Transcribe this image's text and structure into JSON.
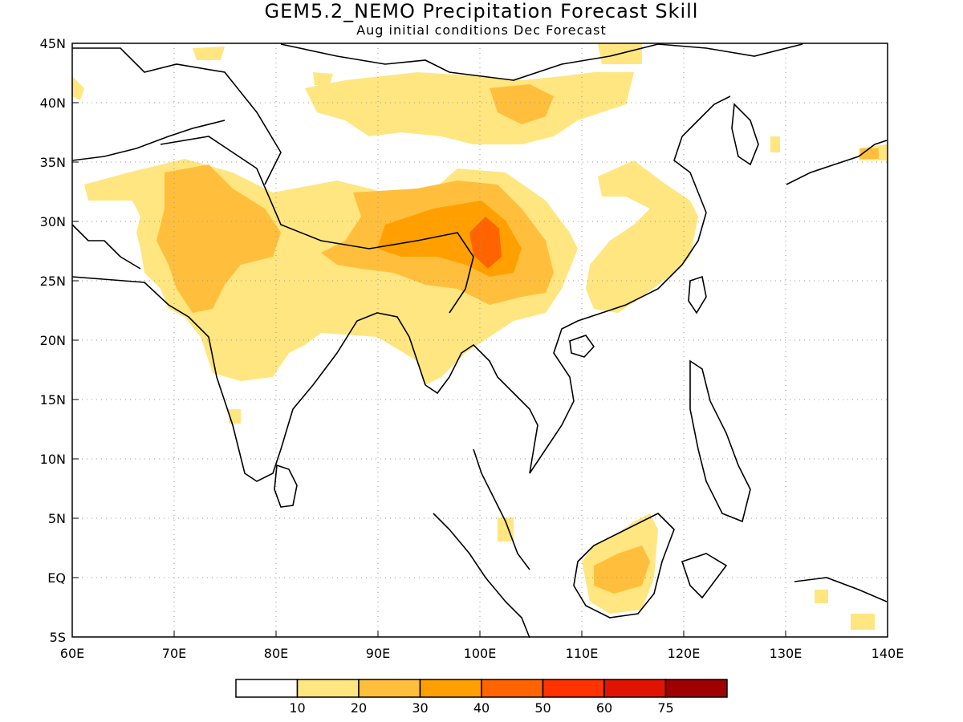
{
  "title": "GEM5.2_NEMO Precipitation Forecast Skill",
  "subtitle": "Aug initial conditions  Dec Forecast",
  "axes": {
    "lon_labels": [
      "60E",
      "70E",
      "80E",
      "90E",
      "100E",
      "110E",
      "120E",
      "130E",
      "140E"
    ],
    "lat_labels": [
      "45N",
      "40N",
      "35N",
      "30N",
      "25N",
      "20N",
      "15N",
      "10N",
      "5N",
      "EQ",
      "5S"
    ]
  },
  "colorbar": {
    "colors": [
      "#ffffff",
      "#ffe680",
      "#ffbf3c",
      "#ffa000",
      "#ff6400",
      "#ff3200",
      "#e01400",
      "#a00000"
    ],
    "labels": [
      "10",
      "20",
      "30",
      "40",
      "50",
      "60",
      "75"
    ]
  },
  "colors": {
    "level1": "#ffe680",
    "level2": "#ffbf3c",
    "level3": "#ffa000",
    "level4": "#ff6400",
    "coast": "#000000",
    "grid": "#999999"
  }
}
